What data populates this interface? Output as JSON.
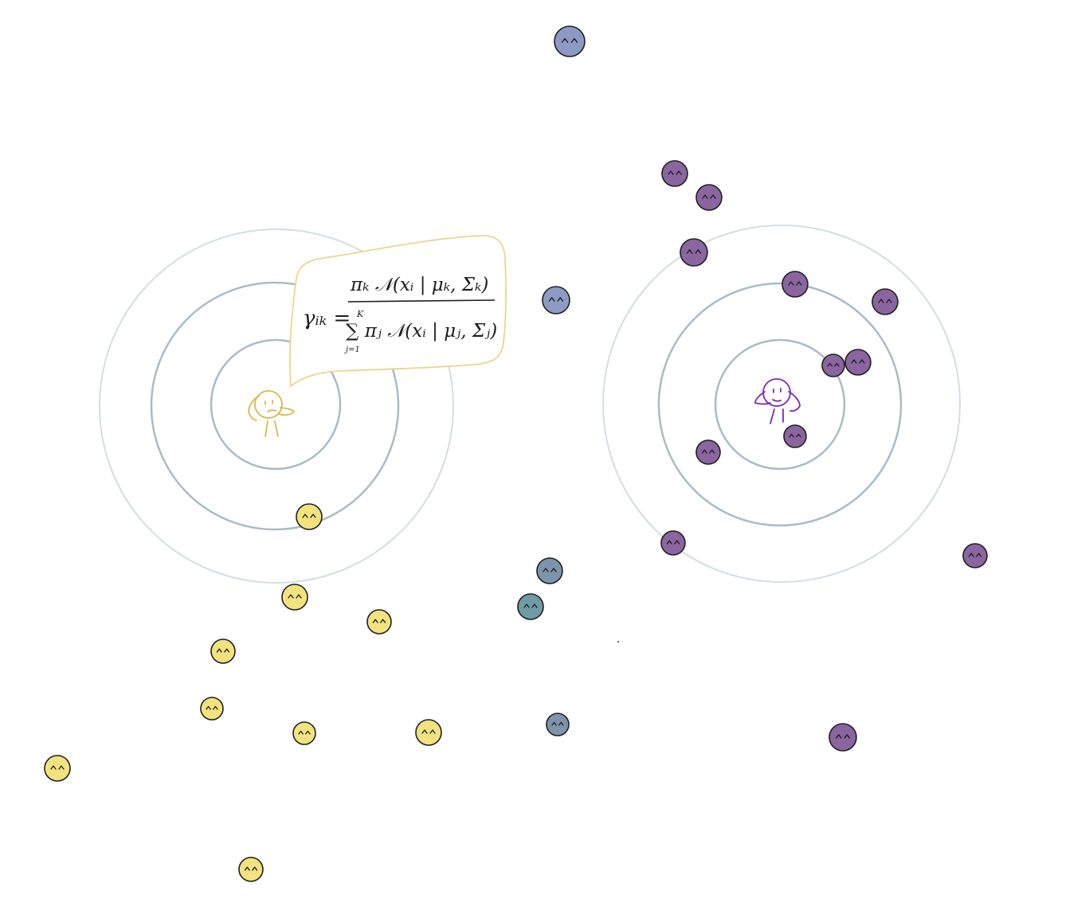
{
  "colors": {
    "yellow_cluster": "#f2e37f",
    "purple_cluster": "#8a659f",
    "blue_points": "#8d9bc4",
    "blue_gray_points": "#7f93ad",
    "teal_point": "#6f9ba4",
    "yellow_figure": "#d8b94a",
    "purple_figure": "#7a2bb0",
    "bubble_outline": "#ecd58c",
    "ring_light": "#d4dee2",
    "ring_dark": "#a9bcc5"
  },
  "formula": {
    "lhs": "γᵢₖ =",
    "numerator": "πₖ 𝒩(xᵢ | μₖ, Σₖ)",
    "denominator": "∑ πⱼ 𝒩(xᵢ | μⱼ, Σⱼ)",
    "sum_upper": "K",
    "sum_lower": "j=1"
  },
  "figures": [
    {
      "name": "yellow-cluster-figure",
      "color": "yellow"
    },
    {
      "name": "purple-cluster-figure",
      "color": "purple"
    }
  ]
}
